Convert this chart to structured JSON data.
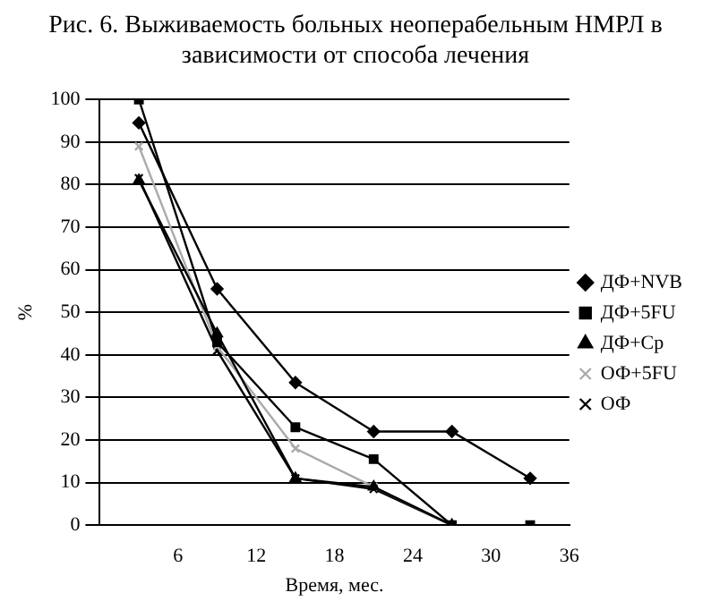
{
  "chart_data": {
    "type": "line",
    "title": "Рис. 6. Выживаемость больных неоперабельным НМРЛ в зависимости от способа лечения",
    "xlabel": "Время, мес.",
    "ylabel": "%",
    "x": [
      3,
      9,
      15,
      21,
      27,
      33
    ],
    "xlim": [
      0,
      36
    ],
    "xticks": [
      6,
      12,
      18,
      24,
      30,
      36
    ],
    "ylim": [
      0,
      100
    ],
    "yticks": [
      0,
      10,
      20,
      30,
      40,
      50,
      60,
      70,
      80,
      90,
      100
    ],
    "grid": "y",
    "legend": "right",
    "series": [
      {
        "name": "ДФ+NVB",
        "color": "#000000",
        "marker": "diamond",
        "values": [
          94.5,
          55.5,
          33.5,
          22,
          22,
          11
        ]
      },
      {
        "name": "ДФ+5FU",
        "color": "#000000",
        "marker": "square",
        "values": [
          100,
          43,
          23,
          15.5,
          0,
          0
        ]
      },
      {
        "name": "ДФ+Cp",
        "color": "#000000",
        "marker": "triangle",
        "values": [
          81,
          45,
          11,
          9,
          0,
          null
        ]
      },
      {
        "name": "ОФ+5FU",
        "color": "#aaaaaa",
        "marker": "cross",
        "values": [
          89,
          42,
          18,
          9,
          0,
          null
        ]
      },
      {
        "name": "ОФ",
        "color": "#000000",
        "marker": "cross",
        "values": [
          81.5,
          41,
          11,
          8.5,
          0,
          null
        ]
      }
    ]
  }
}
